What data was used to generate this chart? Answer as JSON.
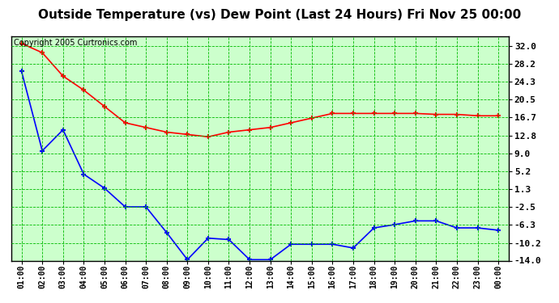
{
  "title": "Outside Temperature (vs) Dew Point (Last 24 Hours) Fri Nov 25 00:00",
  "copyright": "Copyright 2005 Curtronics.com",
  "x_labels": [
    "01:00",
    "02:00",
    "03:00",
    "04:00",
    "05:00",
    "06:00",
    "07:00",
    "08:00",
    "09:00",
    "10:00",
    "11:00",
    "12:00",
    "13:00",
    "14:00",
    "15:00",
    "16:00",
    "17:00",
    "18:00",
    "19:00",
    "20:00",
    "21:00",
    "22:00",
    "23:00",
    "00:00"
  ],
  "y_ticks": [
    32.0,
    28.2,
    24.3,
    20.5,
    16.7,
    12.8,
    9.0,
    5.2,
    1.3,
    -2.5,
    -6.3,
    -10.2,
    -14.0
  ],
  "y_min": -14.0,
  "y_max": 34.0,
  "temp_data": [
    32.5,
    30.5,
    25.5,
    22.5,
    19.0,
    15.5,
    14.5,
    13.5,
    13.0,
    12.5,
    13.5,
    14.0,
    14.5,
    15.5,
    16.5,
    17.5,
    17.5,
    17.5,
    17.5,
    17.5,
    17.3,
    17.3,
    17.0,
    17.0
  ],
  "dew_data": [
    26.5,
    9.5,
    14.0,
    4.5,
    1.5,
    -2.5,
    -2.5,
    -8.0,
    -13.8,
    -9.2,
    -9.5,
    -13.8,
    -13.8,
    -10.5,
    -10.5,
    -10.5,
    -11.3,
    -7.0,
    -6.3,
    -5.5,
    -5.5,
    -7.0,
    -7.0,
    -7.5
  ],
  "temp_color": "#ff0000",
  "dew_color": "#0000ff",
  "bg_color": "#ffffff",
  "plot_bg_color": "#ccffcc",
  "grid_color": "#00bb00",
  "title_color": "#000000",
  "marker": "+",
  "marker_size": 5,
  "marker_edge_width": 1.5,
  "line_width": 1.2,
  "title_fontsize": 11,
  "tick_fontsize": 8,
  "xtick_fontsize": 7,
  "copyright_fontsize": 7
}
